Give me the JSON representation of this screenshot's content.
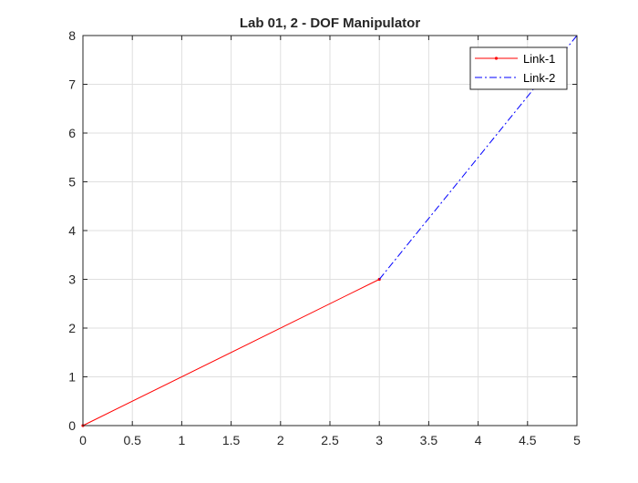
{
  "chart_data": {
    "type": "line",
    "title": "Lab 01, 2 - DOF Manipulator",
    "xlabel": "",
    "ylabel": "",
    "xlim": [
      0,
      5
    ],
    "ylim": [
      0,
      8
    ],
    "xticks": [
      0,
      0.5,
      1,
      1.5,
      2,
      2.5,
      3,
      3.5,
      4,
      4.5,
      5
    ],
    "yticks": [
      0,
      1,
      2,
      3,
      4,
      5,
      6,
      7,
      8
    ],
    "grid": true,
    "legend_position": "top-right",
    "series": [
      {
        "name": "Link-1",
        "x": [
          0,
          3
        ],
        "y": [
          0,
          3
        ],
        "color": "#ff0000",
        "line_style": "solid",
        "marker": "point"
      },
      {
        "name": "Link-2",
        "x": [
          3,
          5
        ],
        "y": [
          3,
          8
        ],
        "color": "#0000ff",
        "line_style": "dash-dot",
        "marker": "none"
      }
    ]
  }
}
